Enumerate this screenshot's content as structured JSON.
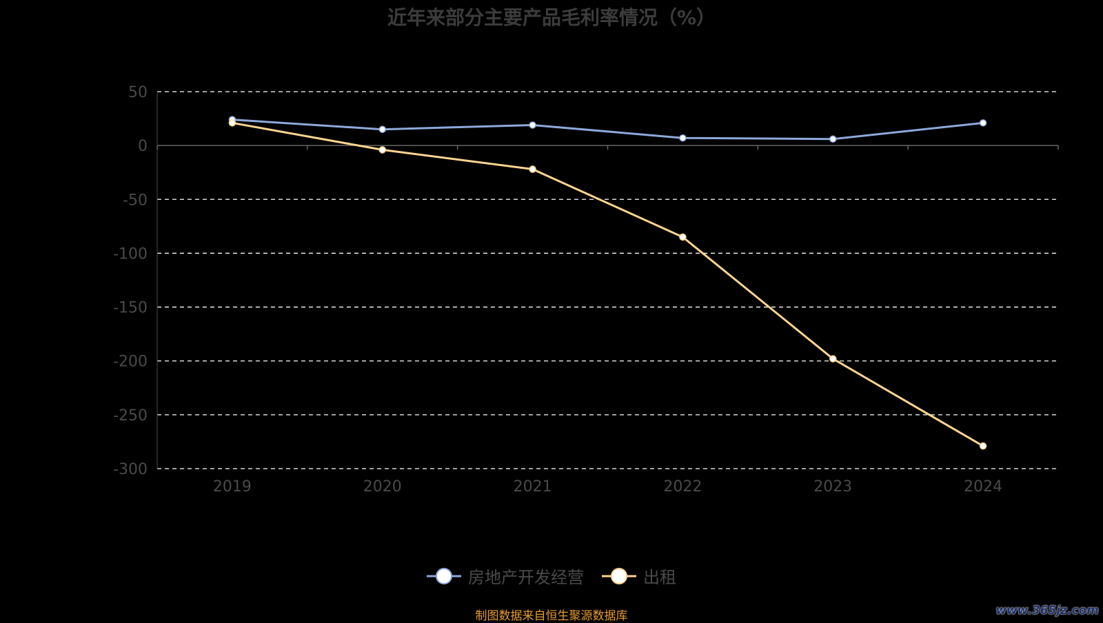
{
  "chart_data": {
    "type": "line",
    "title": "近年来部分主要产品毛利率情况（%）",
    "xlabel": "",
    "ylabel": "",
    "categories": [
      "2019",
      "2020",
      "2021",
      "2022",
      "2023",
      "2024"
    ],
    "ylim": [
      -300,
      50
    ],
    "yticks": [
      50,
      0,
      -50,
      -100,
      -150,
      -200,
      -250,
      -300
    ],
    "grid": true,
    "legend_position": "bottom-center",
    "series": [
      {
        "name": "房地产开发经营",
        "color": "#8ea9db",
        "values": [
          24,
          15,
          19,
          7,
          6,
          21
        ]
      },
      {
        "name": "出租",
        "color": "#ffd591",
        "values": [
          21,
          -4,
          -22,
          -85,
          -198,
          -279
        ]
      }
    ]
  },
  "footer": {
    "source": "制图数据来自恒生聚源数据库",
    "watermark": "www.365jz.com"
  }
}
